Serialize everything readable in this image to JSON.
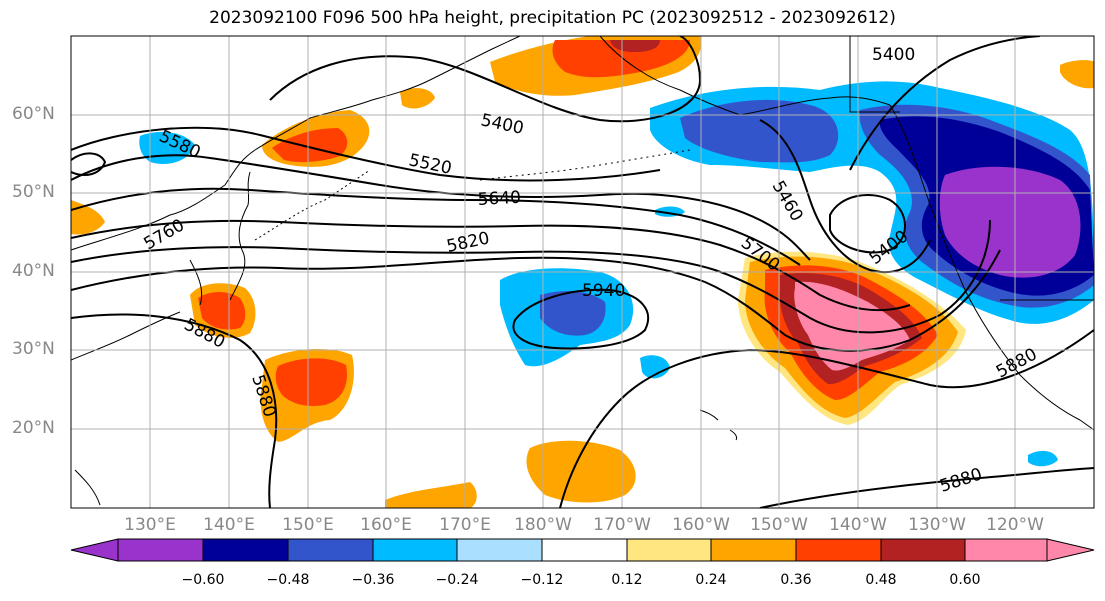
{
  "title": "2023092100 F096 500 hPa height, precipitation PC (2023092512 - 2023092612)",
  "lat_labels": [
    "60°N",
    "50°N",
    "40°N",
    "30°N",
    "20°N"
  ],
  "lon_labels": [
    "130°E",
    "140°E",
    "150°E",
    "160°E",
    "170°E",
    "180°W",
    "170°W",
    "160°W",
    "150°W",
    "140°W",
    "130°W",
    "120°W"
  ],
  "contour_labels": [
    "5400",
    "5580",
    "5400",
    "5520",
    "5640",
    "5760",
    "5820",
    "5940",
    "5700",
    "5460",
    "5400",
    "5880",
    "5880",
    "5880",
    "5880"
  ],
  "colorbar": {
    "ticks": [
      "−0.60",
      "−0.48",
      "−0.36",
      "−0.24",
      "−0.12",
      "0.12",
      "0.24",
      "0.36",
      "0.48",
      "0.60"
    ],
    "colors": [
      "#9933cc",
      "#000099",
      "#3355cc",
      "#00bbff",
      "#aadfff",
      "#ffffff",
      "#ffe680",
      "#ffa500",
      "#ff4000",
      "#b22222",
      "#ff88aa"
    ]
  },
  "palette": {
    "purple": "#9933cc",
    "navy": "#000099",
    "blue": "#3355cc",
    "cyan": "#00bbff",
    "lightblue": "#aadfff",
    "yellow": "#ffe680",
    "orange": "#ffa500",
    "redorange": "#ff4000",
    "darkred": "#b22222",
    "pink": "#ff88aa"
  }
}
